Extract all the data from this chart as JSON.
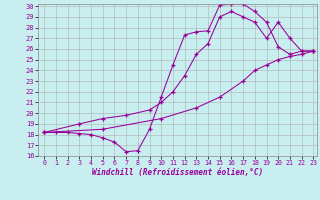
{
  "xlabel": "Windchill (Refroidissement éolien,°C)",
  "bg_color": "#c8eef0",
  "grid_color": "#b0b0b0",
  "line_color": "#990099",
  "xmin": 0,
  "xmax": 23,
  "ymin": 16,
  "ymax": 30,
  "series1": [
    [
      0,
      18.2
    ],
    [
      1,
      18.2
    ],
    [
      2,
      18.2
    ],
    [
      3,
      18.1
    ],
    [
      4,
      18.0
    ],
    [
      5,
      17.7
    ],
    [
      6,
      17.3
    ],
    [
      7,
      16.4
    ],
    [
      8,
      16.5
    ],
    [
      9,
      18.5
    ],
    [
      10,
      21.5
    ],
    [
      11,
      24.5
    ],
    [
      12,
      27.3
    ],
    [
      13,
      27.6
    ],
    [
      14,
      27.7
    ],
    [
      15,
      30.1
    ],
    [
      16,
      30.2
    ],
    [
      17,
      30.2
    ],
    [
      18,
      29.5
    ],
    [
      19,
      28.5
    ],
    [
      20,
      26.2
    ],
    [
      21,
      25.5
    ],
    [
      22,
      25.8
    ],
    [
      23,
      25.8
    ]
  ],
  "series2": [
    [
      0,
      18.2
    ],
    [
      3,
      19.0
    ],
    [
      5,
      19.5
    ],
    [
      7,
      19.8
    ],
    [
      9,
      20.3
    ],
    [
      10,
      21.0
    ],
    [
      11,
      22.0
    ],
    [
      12,
      23.5
    ],
    [
      13,
      25.5
    ],
    [
      14,
      26.5
    ],
    [
      15,
      29.0
    ],
    [
      16,
      29.5
    ],
    [
      17,
      29.0
    ],
    [
      18,
      28.5
    ],
    [
      19,
      27.0
    ],
    [
      20,
      28.5
    ],
    [
      21,
      27.0
    ],
    [
      22,
      25.8
    ],
    [
      23,
      25.8
    ]
  ],
  "series3": [
    [
      0,
      18.2
    ],
    [
      5,
      18.5
    ],
    [
      10,
      19.5
    ],
    [
      13,
      20.5
    ],
    [
      15,
      21.5
    ],
    [
      17,
      23.0
    ],
    [
      18,
      24.0
    ],
    [
      19,
      24.5
    ],
    [
      20,
      25.0
    ],
    [
      21,
      25.3
    ],
    [
      22,
      25.5
    ],
    [
      23,
      25.8
    ]
  ]
}
